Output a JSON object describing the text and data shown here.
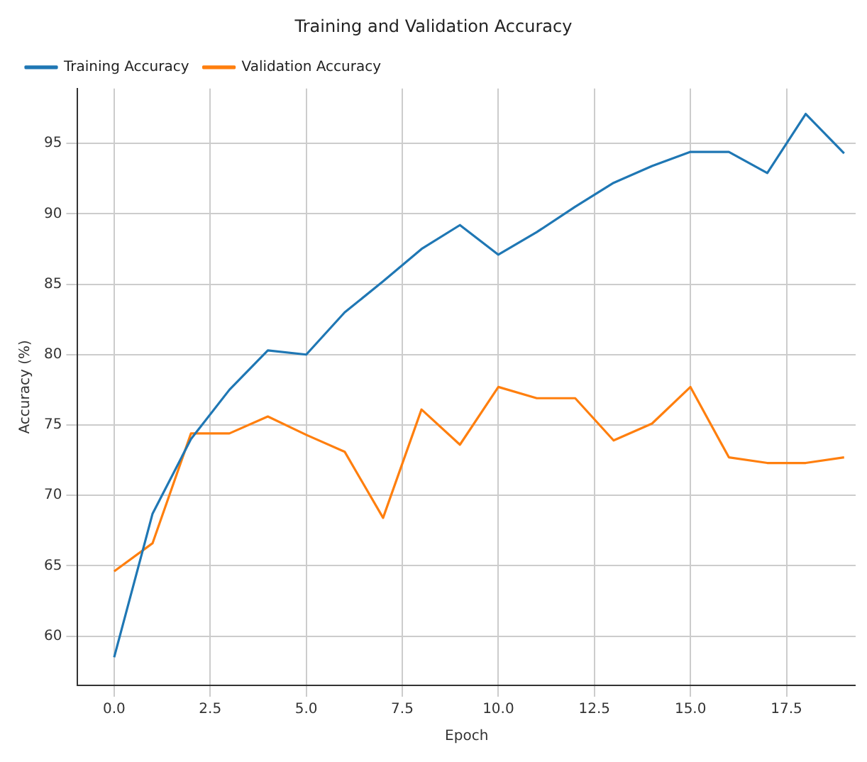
{
  "chart_data": {
    "type": "line",
    "title": "Training and Validation Accuracy",
    "xlabel": "Epoch",
    "ylabel": "Accuracy (%)",
    "x": [
      0,
      1,
      2,
      3,
      4,
      5,
      6,
      7,
      8,
      9,
      10,
      11,
      12,
      13,
      14,
      15,
      16,
      17,
      18,
      19
    ],
    "series": [
      {
        "name": "Training Accuracy",
        "color": "#1f77b4",
        "values": [
          58.5,
          68.7,
          74,
          77.5,
          80.3,
          80,
          83,
          85.2,
          87.5,
          89.2,
          87.1,
          88.7,
          90.5,
          92.2,
          93.4,
          94.4,
          94.4,
          92.9,
          97.1,
          94.3
        ]
      },
      {
        "name": "Validation Accuracy",
        "color": "#ff7f0e",
        "values": [
          64.6,
          66.6,
          74.4,
          74.4,
          75.6,
          74.3,
          73.1,
          68.4,
          76.1,
          73.6,
          77.7,
          76.9,
          76.9,
          73.9,
          75.1,
          77.7,
          72.7,
          72.3,
          72.3,
          72.7
        ]
      }
    ],
    "xlim": [
      -0.95,
      19.3
    ],
    "ylim": [
      56.5,
      98.9
    ],
    "xticks": [
      {
        "value": 0,
        "label": "0.0"
      },
      {
        "value": 2.5,
        "label": "2.5"
      },
      {
        "value": 5,
        "label": "5.0"
      },
      {
        "value": 7.5,
        "label": "7.5"
      },
      {
        "value": 10,
        "label": "10.0"
      },
      {
        "value": 12.5,
        "label": "12.5"
      },
      {
        "value": 15,
        "label": "15.0"
      },
      {
        "value": 17.5,
        "label": "17.5"
      }
    ],
    "yticks": [
      60,
      65,
      70,
      75,
      80,
      85,
      90,
      95
    ],
    "grid": true,
    "legend": "top left",
    "marker": "none",
    "line_style": "solid"
  }
}
